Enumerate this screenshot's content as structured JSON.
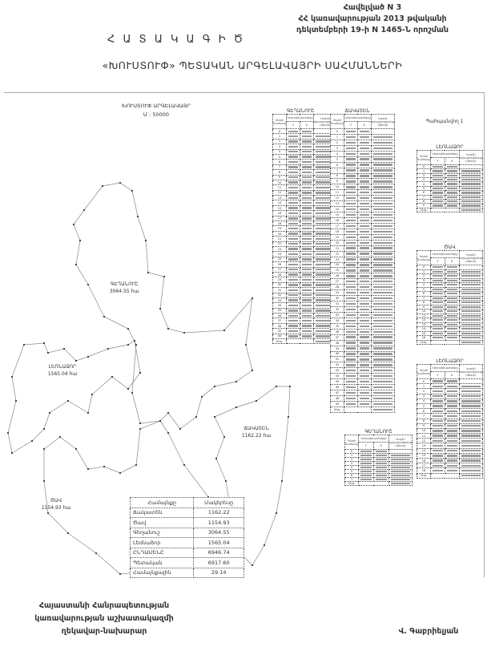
{
  "header": {
    "annex": "Հավելված N 3",
    "line2": "ՀՀ կառավարության 2013 թվականի",
    "line3": "դեկտեմբերի 19-ի N 1465-Ն որոշման"
  },
  "title": "Հ Ա Տ Ա Կ Ա Գ Ի Ծ",
  "subtitle": "«ԽՈՒՍՏՈՒՓ» ՊԵՏԱԿԱՆ ԱՐԳԵԼԱՎԱՅՐԻ ՍԱՀՄԱՆՆԵՐԻ",
  "map": {
    "title": "ԽՈՒՍՏՈՒՓ ԱՐԳԵԼԱՎԱՅՐ",
    "scale": "Մ : 50000",
    "labels": [
      {
        "name": "ԳԵՂԱՆՈՒՇ",
        "area": "3064.55 հա"
      },
      {
        "name": "ԼԵՌՆԱՁՈՐ",
        "area": "1565.04 հա"
      },
      {
        "name": "ՃԱԿԱՏԵՆ",
        "area": "1162.22 հա"
      },
      {
        "name": "ԾԱՎ",
        "area": "1154.93 հա"
      }
    ]
  },
  "area_table": {
    "headers": [
      "Համայնքը",
      "Մակերեսը"
    ],
    "rows": [
      [
        "Ճակատեն",
        "1162.22"
      ],
      [
        "Ծավ",
        "1154.93"
      ],
      [
        "Գեղանուշ",
        "3064.55"
      ],
      [
        "Լեռնաձոր",
        "1565.04"
      ],
      [
        "ԸՆԴԱՄԵՆԸ",
        "6946.74"
      ],
      [
        "Պետական",
        "6917.60"
      ],
      [
        "Համայնքային",
        "29.14"
      ]
    ]
  },
  "coord_header": {
    "point": "Կետի համարը",
    "coords": "Կոորդինատները",
    "y": "Y",
    "x": "X",
    "length": "Կողմի երկարությունը (մետր)",
    "total": "Ընդ."
  },
  "side_note": "Պահպանվող 1",
  "coord_tables": [
    {
      "title": "ԳԵՂԱՆՈՒՇ",
      "points": 40
    },
    {
      "title": "ՃԱԿԱՏԵՆ",
      "points": 49
    },
    {
      "title": "ԼԵՌՆԱՁՈՐ",
      "points": 9
    },
    {
      "title": "ԾԱՎ",
      "points": 16
    },
    {
      "title": "ԼԵՌՆԱՁՈՐ",
      "points": 18
    },
    {
      "title": "ԳԵՂԱՆՈՒՇ",
      "points": 7
    }
  ],
  "footer": {
    "line1": "Հայաստանի Հանրապետության",
    "line2": "կառավարության աշխատակազմի",
    "line3": "ղեկավար-նախարար",
    "signatory": "Վ. Գաբրիելյան"
  }
}
